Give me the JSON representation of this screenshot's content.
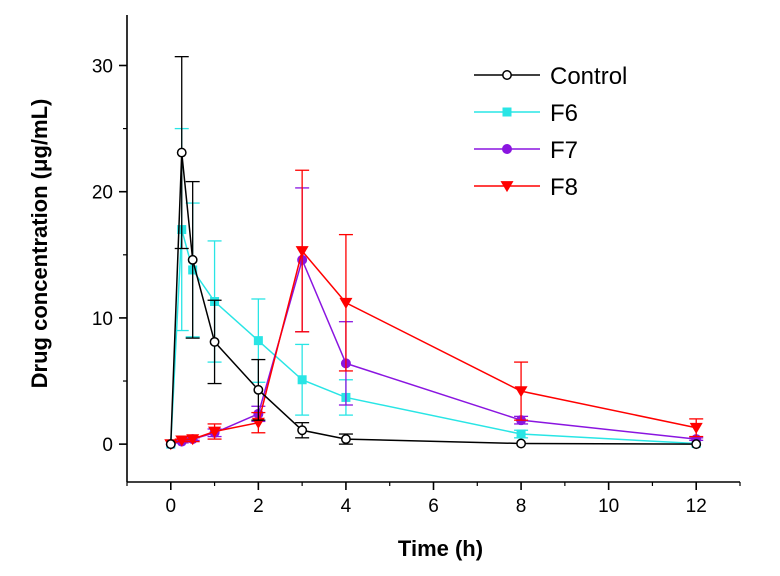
{
  "chart_data": {
    "type": "line",
    "title": "",
    "xlabel": "Time (h)",
    "ylabel": "Drug concentration (μg/mL)",
    "xlim": [
      -1,
      13
    ],
    "ylim": [
      -3,
      34
    ],
    "xticks": [
      0,
      2,
      4,
      6,
      8,
      10,
      12
    ],
    "xtick_labels": [
      "0",
      "2",
      "4",
      "6",
      "8",
      "10",
      "12"
    ],
    "yticks": [
      0,
      10,
      20,
      30
    ],
    "ytick_labels": [
      "0",
      "10",
      "20",
      "30"
    ],
    "grid": false,
    "legend_position": "top-right",
    "series": [
      {
        "name": "Control",
        "color": "#000000",
        "marker": "open-circle",
        "x": [
          0,
          0.25,
          0.5,
          1,
          2,
          3,
          4,
          8,
          12
        ],
        "y": [
          0,
          23.1,
          14.6,
          8.1,
          4.3,
          1.1,
          0.4,
          0.05,
          0.0
        ],
        "err": [
          0,
          7.6,
          6.2,
          3.3,
          2.4,
          0.6,
          0.4,
          0,
          0
        ]
      },
      {
        "name": "F6",
        "color": "#29e5e5",
        "marker": "square",
        "x": [
          0,
          0.25,
          0.5,
          1,
          2,
          3,
          4,
          8,
          12
        ],
        "y": [
          0,
          17.0,
          13.8,
          11.3,
          8.2,
          5.1,
          3.7,
          0.8,
          0.05
        ],
        "err": [
          0,
          8.0,
          5.3,
          4.8,
          3.3,
          2.8,
          1.4,
          0.3,
          0
        ]
      },
      {
        "name": "F7",
        "color": "#8a15e0",
        "marker": "circle",
        "x": [
          0,
          0.25,
          0.5,
          1,
          2,
          3,
          4,
          8,
          12
        ],
        "y": [
          0,
          0.2,
          0.4,
          0.9,
          2.4,
          14.6,
          6.4,
          1.9,
          0.4
        ],
        "err": [
          0,
          0.1,
          0.1,
          0.3,
          0.6,
          5.7,
          3.3,
          0.3,
          0.1
        ]
      },
      {
        "name": "F8",
        "color": "#ff0000",
        "marker": "down-triangle",
        "x": [
          0,
          0.25,
          0.5,
          1,
          2,
          3,
          4,
          8,
          12
        ],
        "y": [
          0,
          0.3,
          0.4,
          1.0,
          1.7,
          15.3,
          11.2,
          4.2,
          1.3
        ],
        "err": [
          0,
          0.1,
          0.2,
          0.6,
          0.8,
          6.4,
          5.4,
          2.3,
          0.7
        ]
      }
    ]
  }
}
